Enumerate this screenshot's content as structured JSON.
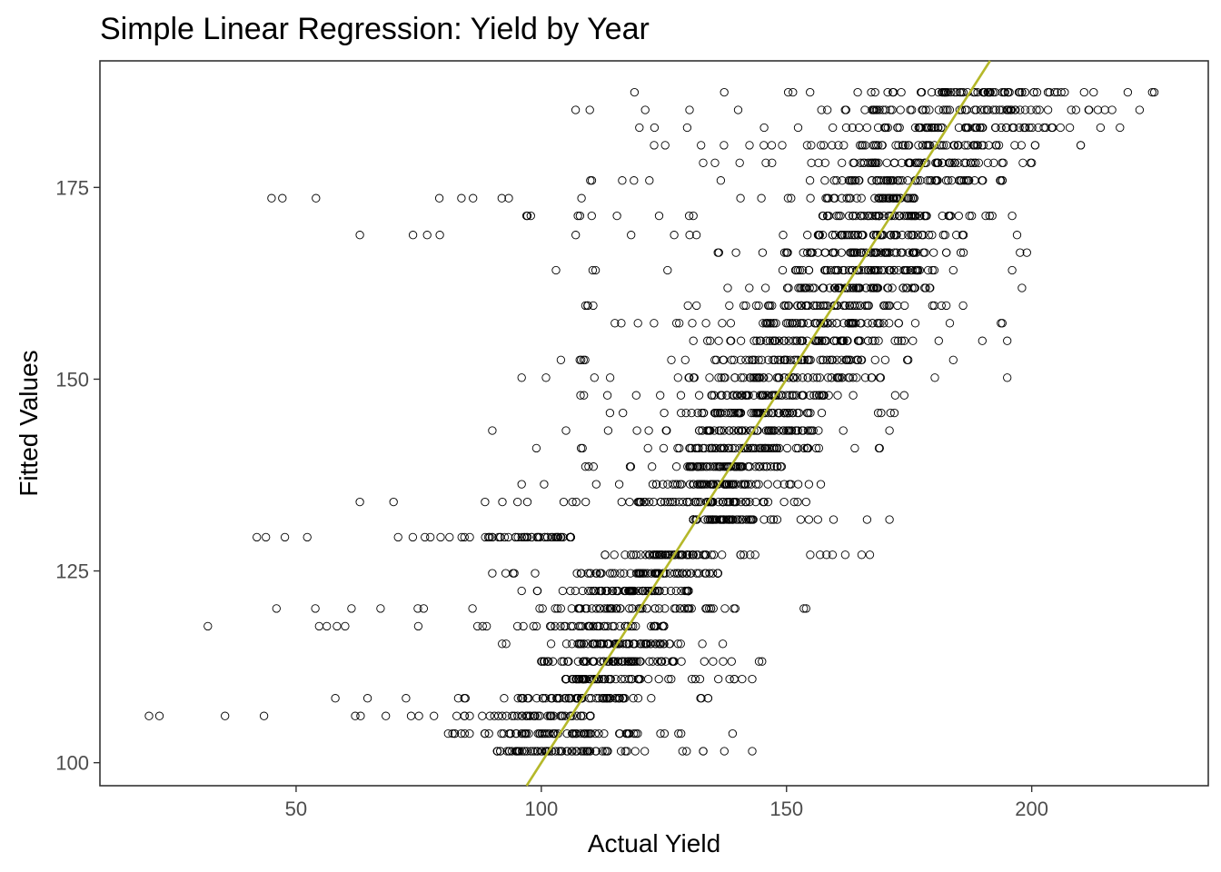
{
  "chart_data": {
    "type": "scatter",
    "title": "Simple Linear Regression: Yield by Year",
    "xlabel": "Actual Yield",
    "ylabel": "Fitted Values",
    "xlim": [
      10,
      236
    ],
    "ylim": [
      97,
      191.5
    ],
    "x_ticks": [
      "50",
      "100",
      "150",
      "200"
    ],
    "x_tick_values": [
      50,
      100,
      150,
      200
    ],
    "y_ticks": [
      "100",
      "125",
      "150",
      "175"
    ],
    "y_tick_values": [
      100,
      125,
      150,
      175
    ],
    "grid": false,
    "legend": "none",
    "fit_line": {
      "slope": 1.0,
      "intercept": 0,
      "color": "#b5b82a"
    },
    "point_color": "#000000",
    "series": [
      {
        "rows": [
          {
            "y": 187.4,
            "x_range": [
              119,
              225
            ],
            "spread": 14
          },
          {
            "y": 185.1,
            "x_range": [
              107,
              222
            ],
            "spread": 13
          },
          {
            "y": 182.8,
            "x_range": [
              120,
              218
            ],
            "spread": 12
          },
          {
            "y": 180.5,
            "x_range": [
              123,
              210
            ],
            "spread": 12
          },
          {
            "y": 178.2,
            "x_range": [
              133,
              200
            ],
            "spread": 10
          },
          {
            "y": 175.9,
            "x_range": [
              110,
              194
            ],
            "spread": 9
          },
          {
            "y": 173.6,
            "x_range": [
              45,
              176
            ],
            "spread": 9
          },
          {
            "y": 171.3,
            "x_range": [
              97,
              196
            ],
            "spread": 9
          },
          {
            "y": 168.8,
            "x_range": [
              63,
              197
            ],
            "spread": 8
          },
          {
            "y": 166.5,
            "x_range": [
              136,
              199
            ],
            "spread": 9
          },
          {
            "y": 164.2,
            "x_range": [
              103,
              196
            ],
            "spread": 8
          },
          {
            "y": 161.9,
            "x_range": [
              138,
              198
            ],
            "spread": 9
          },
          {
            "y": 159.6,
            "x_range": [
              109,
              186
            ],
            "spread": 8
          },
          {
            "y": 157.3,
            "x_range": [
              115,
              194
            ],
            "spread": 8
          },
          {
            "y": 155.0,
            "x_range": [
              131,
              195
            ],
            "spread": 9
          },
          {
            "y": 152.5,
            "x_range": [
              104,
              184
            ],
            "spread": 10
          },
          {
            "y": 150.2,
            "x_range": [
              96,
              195
            ],
            "spread": 8
          },
          {
            "y": 147.9,
            "x_range": [
              108,
              174
            ],
            "spread": 7
          },
          {
            "y": 145.6,
            "x_range": [
              114,
              172
            ],
            "spread": 8
          },
          {
            "y": 143.3,
            "x_range": [
              90,
              171
            ],
            "spread": 8
          },
          {
            "y": 141.0,
            "x_range": [
              99,
              169
            ],
            "spread": 8
          },
          {
            "y": 138.6,
            "x_range": [
              109,
              149
            ],
            "spread": 6
          },
          {
            "y": 136.3,
            "x_range": [
              96,
              157
            ],
            "spread": 7
          },
          {
            "y": 134.0,
            "x_range": [
              63,
              154
            ],
            "spread": 8
          },
          {
            "y": 131.7,
            "x_range": [
              131,
              171
            ],
            "spread": 7
          },
          {
            "y": 129.4,
            "x_range": [
              42,
              106
            ],
            "spread": 10
          },
          {
            "y": 127.1,
            "x_range": [
              113,
              167
            ],
            "spread": 8
          },
          {
            "y": 124.7,
            "x_range": [
              90,
              136
            ],
            "spread": 8
          },
          {
            "y": 122.4,
            "x_range": [
              96,
              130
            ],
            "spread": 7
          },
          {
            "y": 120.1,
            "x_range": [
              46,
              154
            ],
            "spread": 10
          },
          {
            "y": 117.8,
            "x_range": [
              32,
              125
            ],
            "spread": 12
          },
          {
            "y": 115.5,
            "x_range": [
              92,
              137
            ],
            "spread": 7
          },
          {
            "y": 113.2,
            "x_range": [
              100,
              145
            ],
            "spread": 7
          },
          {
            "y": 110.9,
            "x_range": [
              105,
              143
            ],
            "spread": 7
          },
          {
            "y": 108.4,
            "x_range": [
              58,
              134
            ],
            "spread": 9
          },
          {
            "y": 106.1,
            "x_range": [
              20,
              110
            ],
            "spread": 12
          },
          {
            "y": 103.8,
            "x_range": [
              81,
              139
            ],
            "spread": 9
          },
          {
            "y": 101.5,
            "x_range": [
              91,
              143
            ],
            "spread": 8
          }
        ]
      }
    ]
  }
}
